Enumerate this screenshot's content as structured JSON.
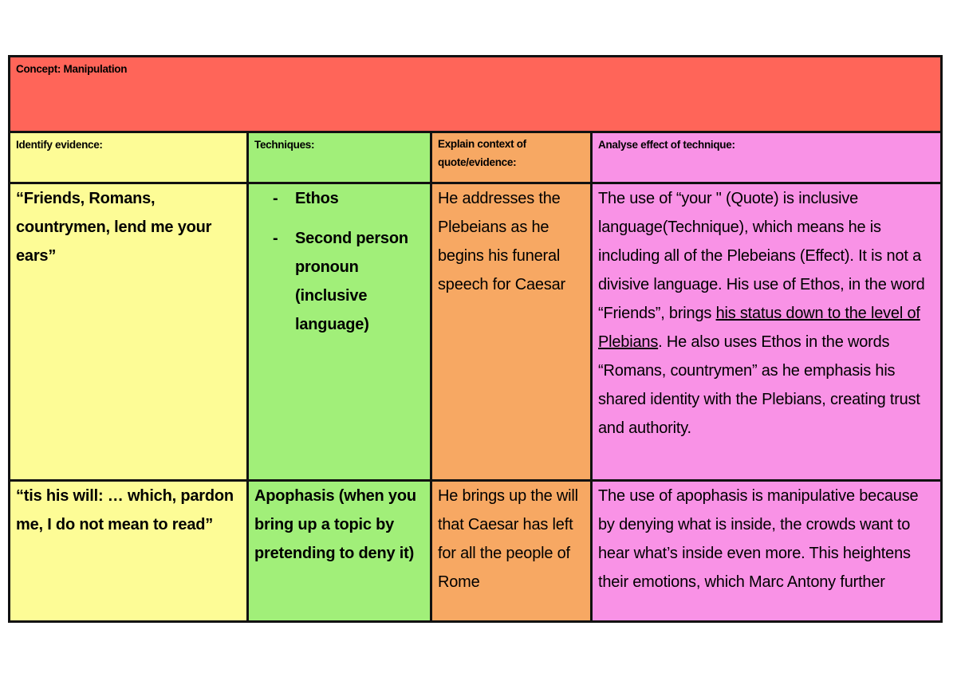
{
  "concept": {
    "label": "Concept: Manipulation"
  },
  "headers": {
    "evidence": "Identify evidence:",
    "techniques": "Techniques:",
    "context": "Explain context of quote/evidence:",
    "effect": "Analyse effect of technique:"
  },
  "rows": [
    {
      "evidence": "“Friends, Romans, countrymen, lend me your ears”",
      "techniques": [
        "Ethos",
        "Second person pronoun (inclusive language)"
      ],
      "context": "He addresses the Plebeians as he begins his funeral speech for Caesar",
      "effect": {
        "before": "The use of “your \" (Quote) is inclusive language(Technique), which means he is including all of the Plebeians (Effect). It is not a divisive language. His use of Ethos, in the word “Friends”, brings ",
        "underlined": "his status down to the level of Plebians",
        "after": ". He also uses Ethos in the words “Romans, countrymen” as he emphasis his shared identity with the Plebians, creating trust and authority."
      }
    },
    {
      "evidence": "“tis his will: … which, pardon me, I do not mean to read”",
      "techniques": "Apophasis (when you bring up a topic by pretending to deny it)",
      "context": "He brings up the will that Caesar has left for all the people of Rome",
      "effect": "The use of apophasis is manipulative because by denying what is inside, the crowds want to hear what’s inside even more. This heightens their emotions, which Marc Antony further"
    }
  ],
  "colors": {
    "concept": "#ff6559",
    "evidence": "#fdfc96",
    "techniques": "#a1ef79",
    "context": "#f7a863",
    "effect": "#f992e6",
    "border": "#111111"
  }
}
